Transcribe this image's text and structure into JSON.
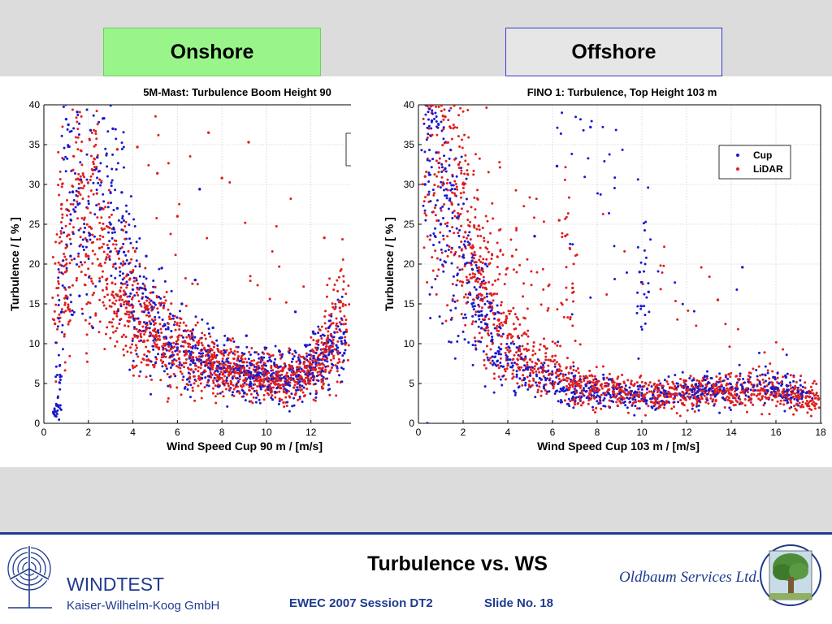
{
  "header": {
    "onshore_label": "Onshore",
    "offshore_label": "Offshore"
  },
  "footer": {
    "title": "Turbulence vs. WS",
    "session": "EWEC 2007 Session DT2",
    "slide": "Slide No. 18",
    "company_name": "WINDTEST",
    "company_sub": "Kaiser-Wilhelm-Koog GmbH",
    "partner": "Oldbaum Services Ltd."
  },
  "colors": {
    "cup": "#1a1acc",
    "lidar": "#e01f1f",
    "onshore_box": "#99f58a",
    "brand_blue": "#1f3b8f"
  },
  "chart_data": [
    {
      "type": "scatter",
      "title": "5M-Mast: Turbulence Boom Height 90",
      "xlabel": "Wind Speed Cup 90 m / [m/s]",
      "ylabel": "Turbulence / [ % ]",
      "xlim": [
        0,
        13.8
      ],
      "ylim": [
        0,
        40
      ],
      "xticks": [
        0,
        2,
        4,
        6,
        8,
        10,
        12
      ],
      "yticks": [
        0,
        5,
        10,
        15,
        20,
        25,
        30,
        35,
        40
      ],
      "grid": true,
      "series": [
        {
          "name": "Cup",
          "color": "#1a1acc",
          "x": [
            0.5,
            0.6,
            0.8,
            1.0,
            1.2,
            1.5,
            1.8,
            2.1,
            2.4,
            2.7,
            3.0,
            3.3,
            3.6,
            3.9,
            4.2,
            4.5,
            4.8,
            5.1,
            5.4,
            5.7,
            6.0,
            6.3,
            6.6,
            6.9,
            7.2,
            7.5,
            7.8,
            8.1,
            8.4,
            8.7,
            9.0,
            9.3,
            9.6,
            9.9,
            10.2,
            10.5,
            10.8,
            11.1,
            11.4,
            11.7,
            12.0,
            12.3,
            12.6,
            12.9,
            13.2,
            13.5,
            1.1,
            1.6,
            2.6,
            3.1,
            3.5,
            7.0,
            2.2,
            2.9,
            3.7,
            4.6,
            5.3,
            6.2,
            6.8,
            7.6,
            8.3,
            9.1,
            9.8,
            10.6,
            11.3,
            12.1,
            12.8,
            13.4
          ],
          "y": [
            1.0,
            2.3,
            14.0,
            38.2,
            21.0,
            39.1,
            24.0,
            36.8,
            33.4,
            38.3,
            25.0,
            27.0,
            21.5,
            19.0,
            17.0,
            14.0,
            12.5,
            11.5,
            10.8,
            10.0,
            9.5,
            9.0,
            8.6,
            8.0,
            7.7,
            7.5,
            7.2,
            7.0,
            6.8,
            6.7,
            6.5,
            6.4,
            6.2,
            6.1,
            6.0,
            5.9,
            5.8,
            5.7,
            6.0,
            6.5,
            7.0,
            8.0,
            8.5,
            9.0,
            9.5,
            8.8,
            37.5,
            16.0,
            27.0,
            37.0,
            29.0,
            29.4,
            12.0,
            22.0,
            24.0,
            21.0,
            19.5,
            15.0,
            18.0,
            12.0,
            10.5,
            11.0,
            8.0,
            9.0,
            14.0,
            11.5,
            12.0,
            10.0
          ]
        },
        {
          "name": "LiDAR",
          "color": "#e01f1f",
          "x": [
            0.5,
            0.8,
            1.0,
            1.3,
            1.6,
            1.9,
            2.2,
            2.5,
            2.8,
            3.1,
            3.4,
            3.7,
            4.0,
            4.3,
            4.6,
            4.9,
            5.2,
            5.5,
            5.8,
            6.1,
            6.4,
            6.7,
            7.0,
            7.3,
            7.6,
            7.9,
            8.2,
            8.5,
            8.8,
            9.1,
            9.4,
            9.7,
            10.0,
            10.3,
            10.6,
            10.9,
            11.2,
            11.5,
            11.8,
            12.1,
            12.4,
            12.7,
            13.0,
            13.3,
            13.6,
            4.2,
            7.4,
            9.2,
            12.6,
            8.0,
            5.1,
            3.3,
            2.0,
            6.0,
            11.0
          ],
          "y": [
            12.5,
            27.5,
            16.0,
            24.0,
            30.6,
            21.0,
            31.8,
            22.0,
            18.0,
            16.5,
            15.5,
            14.5,
            13.5,
            12.5,
            11.8,
            11.0,
            10.5,
            10.0,
            9.5,
            9.0,
            8.7,
            8.3,
            8.0,
            7.6,
            7.3,
            7.0,
            6.8,
            6.5,
            6.3,
            6.1,
            5.9,
            5.8,
            5.6,
            5.5,
            5.4,
            5.3,
            5.5,
            5.8,
            6.2,
            7.0,
            8.0,
            9.0,
            10.0,
            14.5,
            11.5,
            34.7,
            36.5,
            35.3,
            23.3,
            30.8,
            31.4,
            34.4,
            21.0,
            26.0,
            9.0
          ]
        }
      ]
    },
    {
      "type": "scatter",
      "title": "FINO 1: Turbulence, Top Height 103 m",
      "xlabel": "Wind Speed Cup 103 m / [m/s]",
      "ylabel": "Turbulence / [ % ]",
      "xlim": [
        0,
        18
      ],
      "ylim": [
        0,
        40
      ],
      "xticks": [
        0,
        2,
        4,
        6,
        8,
        10,
        12,
        14,
        16,
        18
      ],
      "yticks": [
        0,
        5,
        10,
        15,
        20,
        25,
        30,
        35,
        40
      ],
      "grid": true,
      "legend": {
        "placement": "top-right",
        "entries": [
          "Cup",
          "LiDAR"
        ]
      },
      "series": [
        {
          "name": "Cup",
          "color": "#1a1acc",
          "x": [
            0.3,
            0.5,
            0.6,
            0.8,
            1.0,
            1.2,
            1.5,
            1.8,
            2.1,
            2.4,
            2.7,
            3.0,
            3.3,
            3.6,
            4.0,
            4.5,
            5.0,
            5.5,
            6.0,
            6.5,
            7.0,
            7.5,
            8.0,
            8.5,
            9.0,
            9.5,
            10.0,
            10.5,
            11.0,
            11.5,
            12.0,
            12.5,
            13.0,
            13.5,
            14.0,
            14.5,
            15.0,
            15.5,
            16.0,
            16.5,
            17.0,
            17.5,
            6.2,
            7.7,
            9.9,
            10.3,
            14.5,
            5.2,
            3.0,
            1.4,
            0.4
          ],
          "y": [
            30.0,
            39.5,
            38.0,
            34.0,
            25.0,
            32.0,
            22.0,
            26.0,
            20.0,
            15.0,
            13.5,
            12.5,
            10.5,
            9.0,
            8.0,
            7.0,
            6.0,
            5.5,
            5.0,
            4.5,
            4.3,
            4.0,
            3.9,
            3.8,
            3.7,
            3.6,
            3.5,
            3.5,
            3.6,
            3.7,
            3.8,
            4.0,
            4.2,
            4.3,
            4.5,
            4.6,
            4.7,
            4.6,
            4.5,
            4.2,
            4.0,
            3.8,
            32.3,
            37.2,
            19.0,
            16.5,
            19.6,
            23.5,
            20.0,
            28.0,
            0.0
          ]
        },
        {
          "name": "LiDAR",
          "color": "#e01f1f",
          "x": [
            0.3,
            0.6,
            0.9,
            1.2,
            1.5,
            1.8,
            2.1,
            2.4,
            2.7,
            3.0,
            3.3,
            3.6,
            4.0,
            4.5,
            5.0,
            5.5,
            6.0,
            6.5,
            7.0,
            7.5,
            8.0,
            8.5,
            9.0,
            9.5,
            10.0,
            10.5,
            11.0,
            11.5,
            12.0,
            12.5,
            13.0,
            13.5,
            14.0,
            14.5,
            15.0,
            15.5,
            16.0,
            16.5,
            17.0,
            17.5,
            17.9,
            6.3,
            6.9,
            4.2,
            2.7,
            1.1,
            13.4
          ],
          "y": [
            31.0,
            39.0,
            34.0,
            38.5,
            27.5,
            32.5,
            24.0,
            22.0,
            19.0,
            17.0,
            14.5,
            13.0,
            11.0,
            9.5,
            8.0,
            7.0,
            6.2,
            5.5,
            5.0,
            4.7,
            4.4,
            4.2,
            4.0,
            3.8,
            3.7,
            3.6,
            3.6,
            3.7,
            3.8,
            3.9,
            4.0,
            4.1,
            4.2,
            4.2,
            4.1,
            4.0,
            3.9,
            3.7,
            3.5,
            3.3,
            3.0,
            25.5,
            17.0,
            21.0,
            24.8,
            38.6,
            15.5
          ]
        }
      ]
    }
  ]
}
